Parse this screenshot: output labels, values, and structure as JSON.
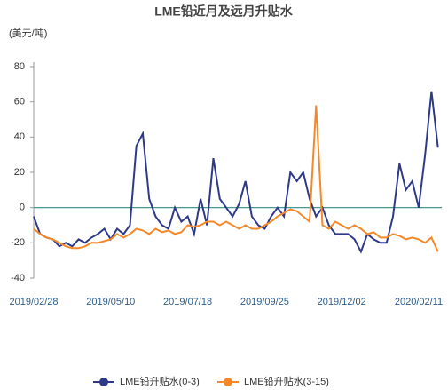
{
  "chart_data": {
    "type": "line",
    "title": "LME铅近月及远月升贴水",
    "y_label": "(美元/吨)",
    "categories": [
      "2019/02/28",
      null,
      null,
      null,
      null,
      null,
      null,
      null,
      null,
      null,
      null,
      null,
      "2019/05/10",
      null,
      null,
      null,
      null,
      null,
      null,
      null,
      null,
      null,
      null,
      null,
      "2019/07/18",
      null,
      null,
      null,
      null,
      null,
      null,
      null,
      null,
      null,
      null,
      null,
      "2019/09/25",
      null,
      null,
      null,
      null,
      null,
      null,
      null,
      null,
      null,
      null,
      null,
      "2019/12/02",
      null,
      null,
      null,
      null,
      null,
      null,
      null,
      null,
      null,
      null,
      null,
      "2020/02/11",
      null,
      null,
      null
    ],
    "series": [
      {
        "name": "LME铅升贴水(0-3)",
        "color": "#2e3a87",
        "values": [
          -5,
          -15,
          -17,
          -18,
          -22,
          -20,
          -22,
          -18,
          -20,
          -17,
          -15,
          -12,
          -18,
          -12,
          -15,
          -10,
          35,
          42,
          5,
          -5,
          -10,
          -12,
          0,
          -8,
          -5,
          -15,
          5,
          -10,
          28,
          5,
          0,
          -5,
          2,
          15,
          -5,
          -10,
          -12,
          -5,
          0,
          -5,
          20,
          15,
          20,
          5,
          -5,
          0,
          -10,
          -15,
          -15,
          -15,
          -18,
          -25,
          -15,
          -18,
          -20,
          -20,
          -5,
          25,
          10,
          15,
          0,
          30,
          66,
          34
        ]
      },
      {
        "name": "LME铅升贴水(3-15)",
        "color": "#f5892a",
        "values": [
          -12,
          -15,
          -17,
          -18,
          -20,
          -22,
          -23,
          -23,
          -22,
          -20,
          -20,
          -19,
          -18,
          -15,
          -17,
          -15,
          -12,
          -13,
          -15,
          -12,
          -14,
          -13,
          -15,
          -14,
          -10,
          -11,
          -10,
          -8,
          -8,
          -10,
          -8,
          -10,
          -12,
          -10,
          -12,
          -12,
          -10,
          -8,
          -5,
          -3,
          -1,
          -2,
          -5,
          -8,
          58,
          -10,
          -12,
          -8,
          -10,
          -12,
          -10,
          -12,
          -15,
          -14,
          -17,
          -17,
          -15,
          -16,
          -18,
          -17,
          -18,
          -20,
          -17,
          -25
        ]
      }
    ],
    "ylim": [
      -40,
      80
    ],
    "yticks": [
      -40,
      -20,
      0,
      20,
      40,
      60,
      80
    ]
  }
}
